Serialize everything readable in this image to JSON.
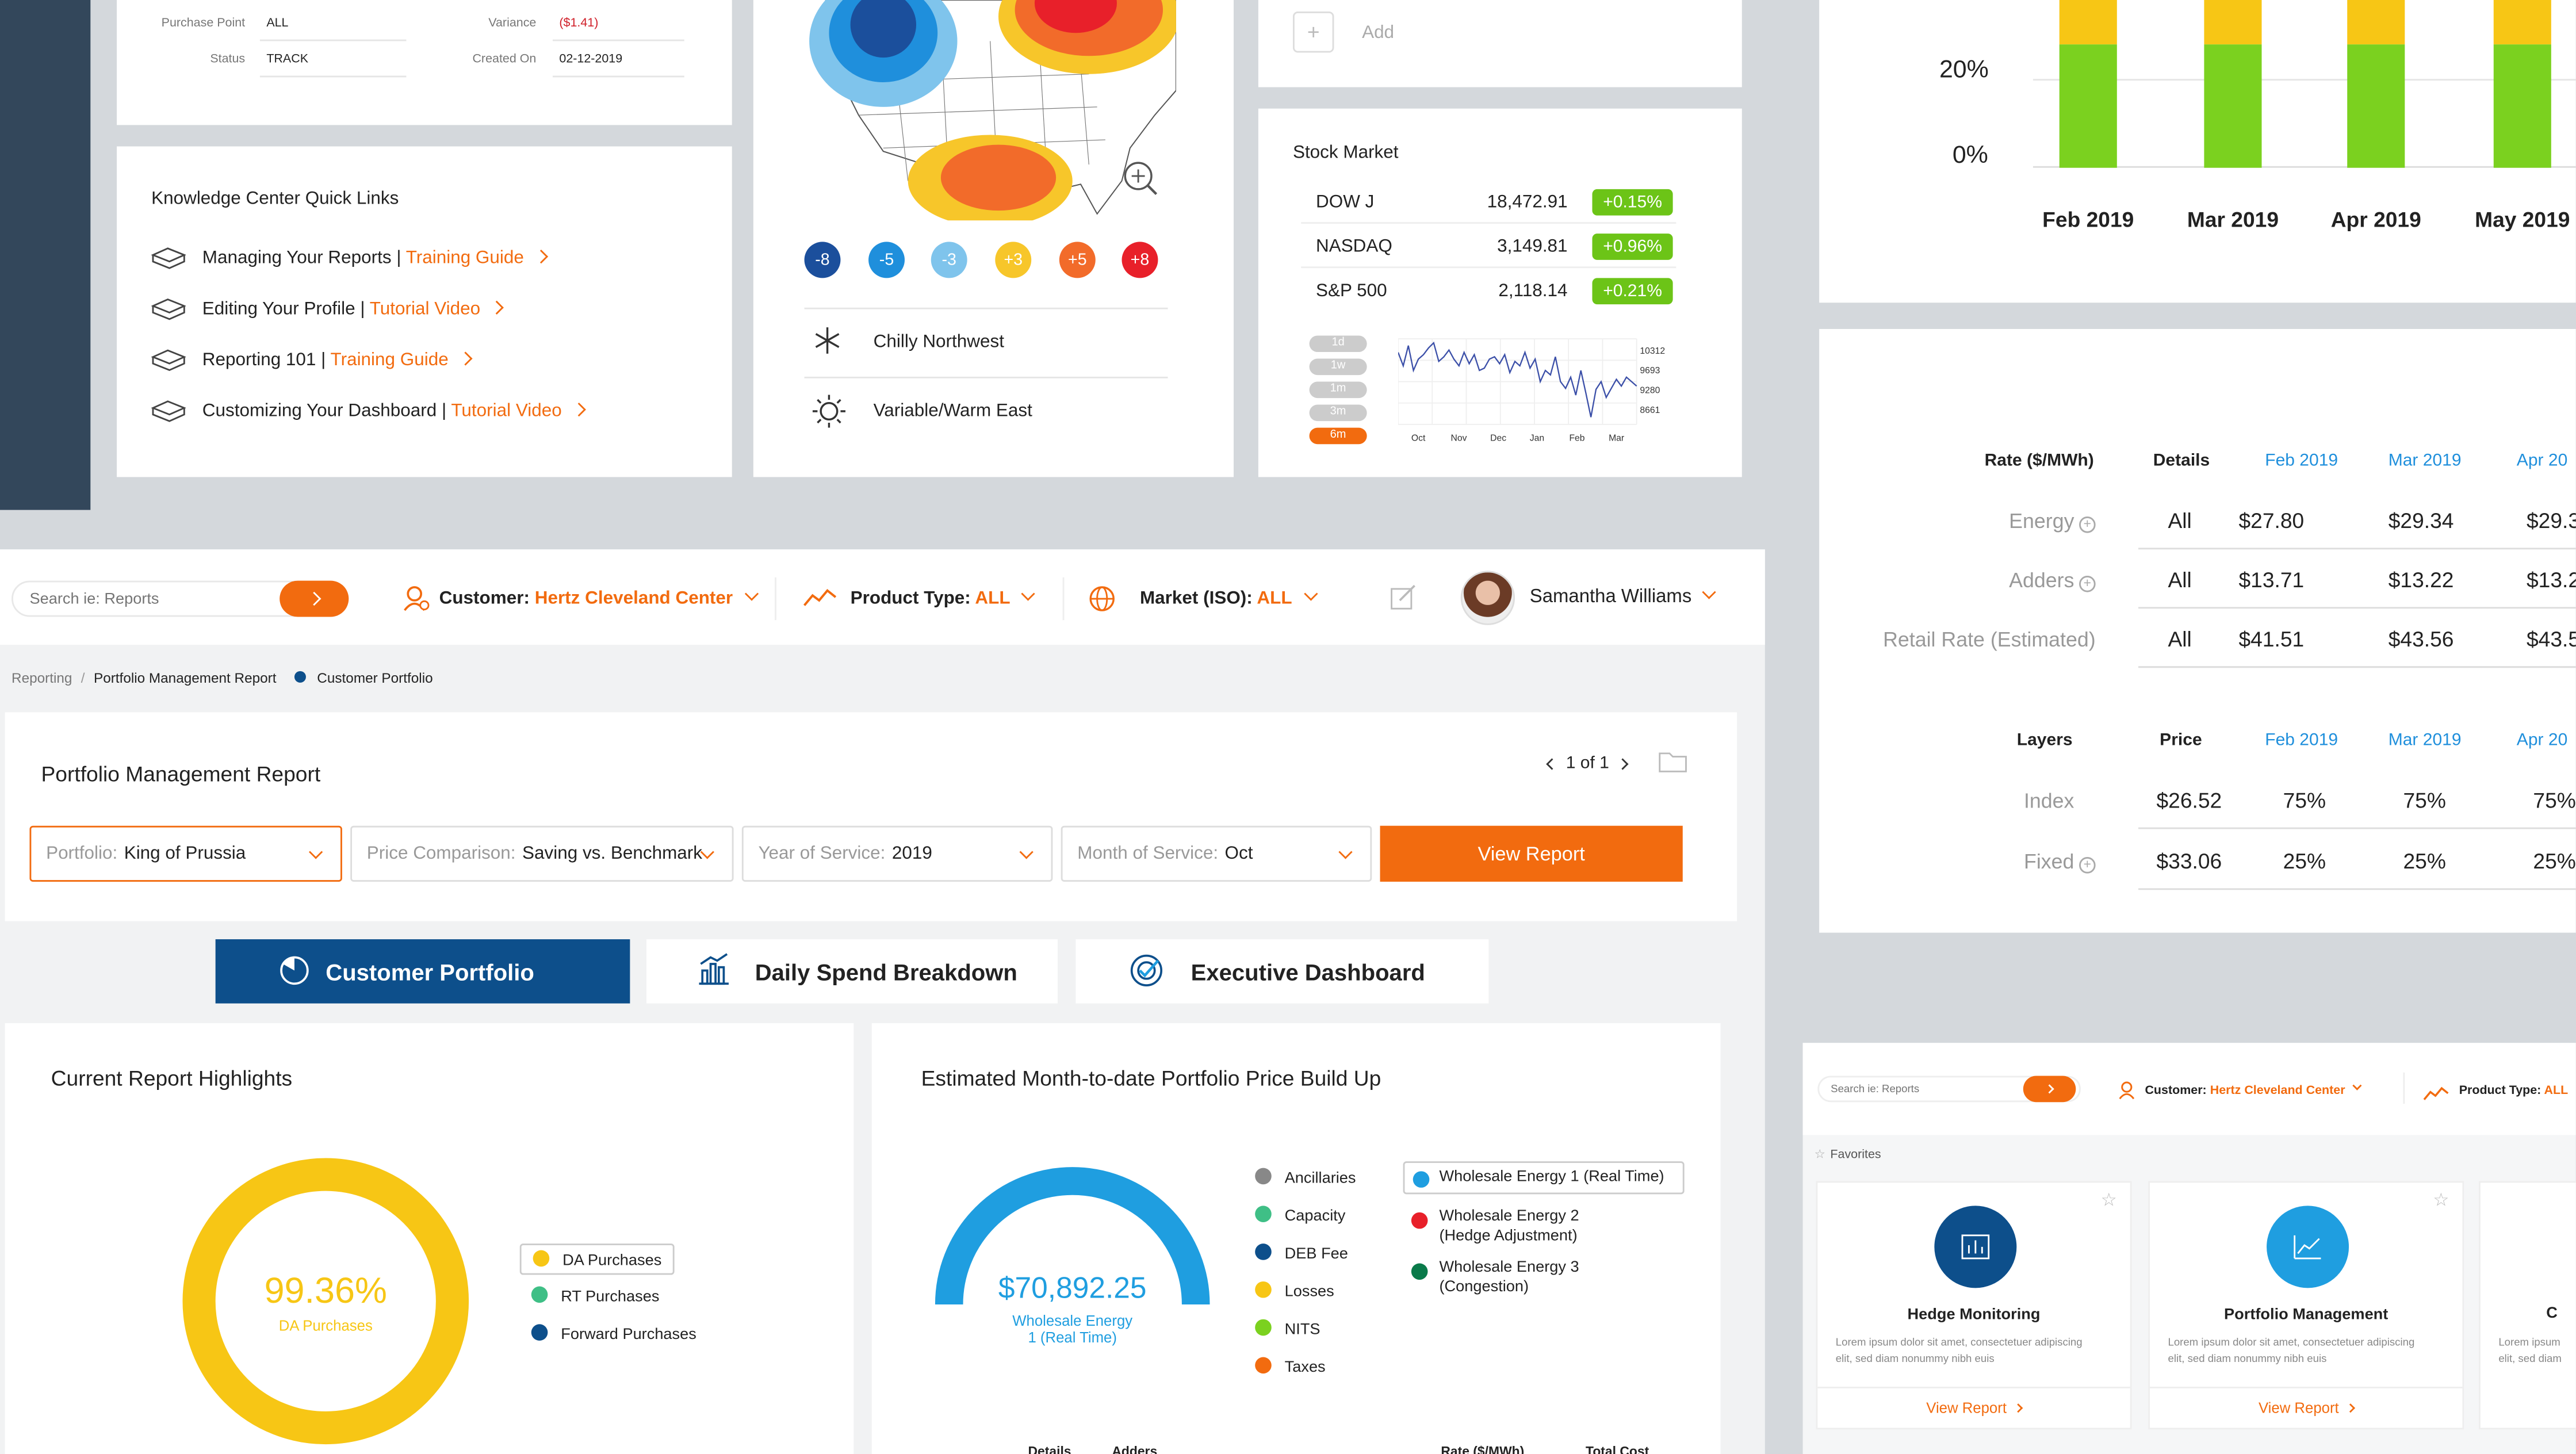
{
  "order_panel": {
    "purchase_point_label": "Purchase Point",
    "purchase_point_value": "ALL",
    "status_label": "Status",
    "status_value": "TRACK",
    "variance_label": "Variance",
    "variance_value": "($1.41)",
    "created_label": "Created On",
    "created_value": "02-12-2019"
  },
  "knowledge": {
    "title": "Knowledge Center Quick Links",
    "links": [
      {
        "text": "Managing Your Reports | ",
        "link": "Training Guide"
      },
      {
        "text": "Editing Your Profile | ",
        "link": "Tutorial Video"
      },
      {
        "text": "Reporting 101 | ",
        "link": "Training Guide"
      },
      {
        "text": "Customizing Your Dashboard | ",
        "link": "Tutorial Video"
      }
    ]
  },
  "weather": {
    "scale": [
      "-8",
      "-5",
      "-3",
      "+3",
      "+5",
      "+8"
    ],
    "scale_colors": [
      "#1b4f9c",
      "#1f8fdc",
      "#7fc4ec",
      "#f7c62a",
      "#f26b2a",
      "#e8202a"
    ],
    "items": [
      {
        "icon": "snowflake-icon",
        "label": "Chilly Northwest"
      },
      {
        "icon": "sun-icon",
        "label": "Variable/Warm East"
      }
    ]
  },
  "add_panel": {
    "add_label": "Add"
  },
  "stock": {
    "title": "Stock Market",
    "rows": [
      {
        "name": "DOW J",
        "value": "18,472.91",
        "change": "+0.15%"
      },
      {
        "name": "NASDAQ",
        "value": "3,149.81",
        "change": "+0.96%"
      },
      {
        "name": "S&P 500",
        "value": "2,118.14",
        "change": "+0.21%"
      }
    ],
    "ranges": [
      "1d",
      "1w",
      "1m",
      "3m",
      "6m"
    ],
    "active_range": "6m",
    "ytick_labels": [
      "10312",
      "9693",
      "9280",
      "8661"
    ],
    "xtick_labels": [
      "Oct",
      "Nov",
      "Dec",
      "Jan",
      "Feb",
      "Mar"
    ],
    "spark": [
      10100,
      9800,
      10250,
      9700,
      9950,
      10050,
      10200,
      10312,
      9900,
      10000,
      10150,
      9950,
      9800,
      10100,
      9850,
      10050,
      9700,
      9750,
      9950,
      10000,
      9850,
      10050,
      9650,
      9900,
      9800,
      10100,
      9750,
      9950,
      9450,
      9700,
      9600,
      10000,
      9450,
      9300,
      9550,
      9150,
      9700,
      9200,
      8661,
      9280,
      9450,
      9100,
      9300,
      9500,
      9350,
      9550,
      9450,
      9350
    ]
  },
  "top_chart": {
    "y_ticks": [
      "20%",
      "0%"
    ],
    "categories": [
      "Feb 2019",
      "Mar 2019",
      "Apr 2019",
      "May 2019"
    ]
  },
  "rate_table": {
    "header": [
      "Rate ($/MWh)",
      "Details",
      "Feb 2019",
      "Mar 2019",
      "Apr 20"
    ],
    "rows": [
      {
        "label": "Energy",
        "details": "All",
        "v": [
          "$27.80",
          "$29.34",
          "$29.3"
        ]
      },
      {
        "label": "Adders",
        "details": "All",
        "v": [
          "$13.71",
          "$13.22",
          "$13.2"
        ]
      },
      {
        "label": "Retail Rate (Estimated)",
        "details": "All",
        "v": [
          "$41.51",
          "$43.56",
          "$43.5"
        ]
      }
    ],
    "header2": [
      "Layers",
      "Price",
      "Feb 2019",
      "Mar 2019",
      "Apr 20"
    ],
    "rows2": [
      {
        "label": "Index",
        "price": "$26.52",
        "v": [
          "75%",
          "75%",
          "75%"
        ]
      },
      {
        "label": "Fixed",
        "price": "$33.06",
        "v": [
          "25%",
          "25%",
          "25%"
        ]
      }
    ]
  },
  "topbar": {
    "search_placeholder": "Search ie: Reports",
    "customer_label": "Customer:",
    "customer_value": "Hertz Cleveland Center",
    "product_label": "Product Type:",
    "product_value": "ALL",
    "market_label": "Market (ISO):",
    "market_value": "ALL",
    "user_name": "Samantha Williams"
  },
  "breadcrumb": {
    "items": [
      "Reporting",
      "Portfolio Management Report",
      "Customer Portfolio"
    ]
  },
  "report": {
    "title": "Portfolio Management Report",
    "pager": "1 of 1",
    "filters": [
      {
        "label": "Portfolio:",
        "value": "King of Prussia"
      },
      {
        "label": "Price Comparison:",
        "value": "Saving vs. Benchmark"
      },
      {
        "label": "Year of Service:",
        "value": "2019"
      },
      {
        "label": "Month of Service:",
        "value": "Oct"
      }
    ],
    "view_button": "View Report"
  },
  "tabs": [
    "Customer Portfolio",
    "Daily Spend Breakdown",
    "Executive Dashboard"
  ],
  "highlights": {
    "title": "Current Report Highlights",
    "value": "99.36%",
    "value_label": "DA Purchases",
    "legend": [
      {
        "name": "DA Purchases",
        "color": "#f7c615"
      },
      {
        "name": "RT Purchases",
        "color": "#3fbf86"
      },
      {
        "name": "Forward Purchases",
        "color": "#0d4f8b"
      }
    ],
    "chart_data": {
      "type": "pie",
      "labels": [
        "DA Purchases",
        "RT Purchases",
        "Forward Purchases"
      ],
      "values": [
        99.36,
        0.32,
        0.32
      ]
    }
  },
  "buildup": {
    "title": "Estimated Month-to-date Portfolio Price Build Up",
    "value": "$70,892.25",
    "value_label_1": "Wholesale Energy",
    "value_label_2": "1 (Real Time)",
    "legend_left": [
      {
        "name": "Ancillaries",
        "color": "#888"
      },
      {
        "name": "Capacity",
        "color": "#3fbf86"
      },
      {
        "name": "DEB Fee",
        "color": "#0d4f8b"
      },
      {
        "name": "Losses",
        "color": "#f7c615"
      },
      {
        "name": "NITS",
        "color": "#7bd11f"
      },
      {
        "name": "Taxes",
        "color": "#f26b0f"
      }
    ],
    "legend_right": [
      {
        "name": "Wholesale Energy 1 (Real Time)",
        "color": "#1f9ee0"
      },
      {
        "name": "Wholesale Energy 2",
        "name2": "(Hedge Adjustment)",
        "color": "#e8202a"
      },
      {
        "name": "Wholesale Energy 3",
        "name2": "(Congestion)",
        "color": "#0a7a4a"
      }
    ],
    "footer_cols": [
      "Details",
      "Adders",
      "Rate ($/MWh)",
      "Total Cost"
    ]
  },
  "mini": {
    "search_placeholder": "Search ie: Reports",
    "customer_label": "Customer:",
    "customer_value": "Hertz Cleveland Center",
    "product_label": "Product Type:",
    "product_value": "ALL",
    "favorites_label": "Favorites",
    "cards": [
      {
        "title": "Hedge Monitoring",
        "icon": "bar-chart-icon",
        "color": "#0d4f8b",
        "desc1": "Lorem ipsum dolor sit amet, consectetuer adipiscing",
        "desc2": "elit, sed diam nonummy nibh euis",
        "link": "View Report"
      },
      {
        "title": "Portfolio Management",
        "icon": "line-chart-icon",
        "color": "#1f9ee0",
        "desc1": "Lorem ipsum dolor sit amet, consectetuer adipiscing",
        "desc2": "elit, sed diam nonummy nibh euis",
        "link": "View Report"
      }
    ],
    "partial_card_title": "C",
    "partial_desc1": "Lorem ipsum",
    "partial_desc2": "elit, sed diam"
  }
}
